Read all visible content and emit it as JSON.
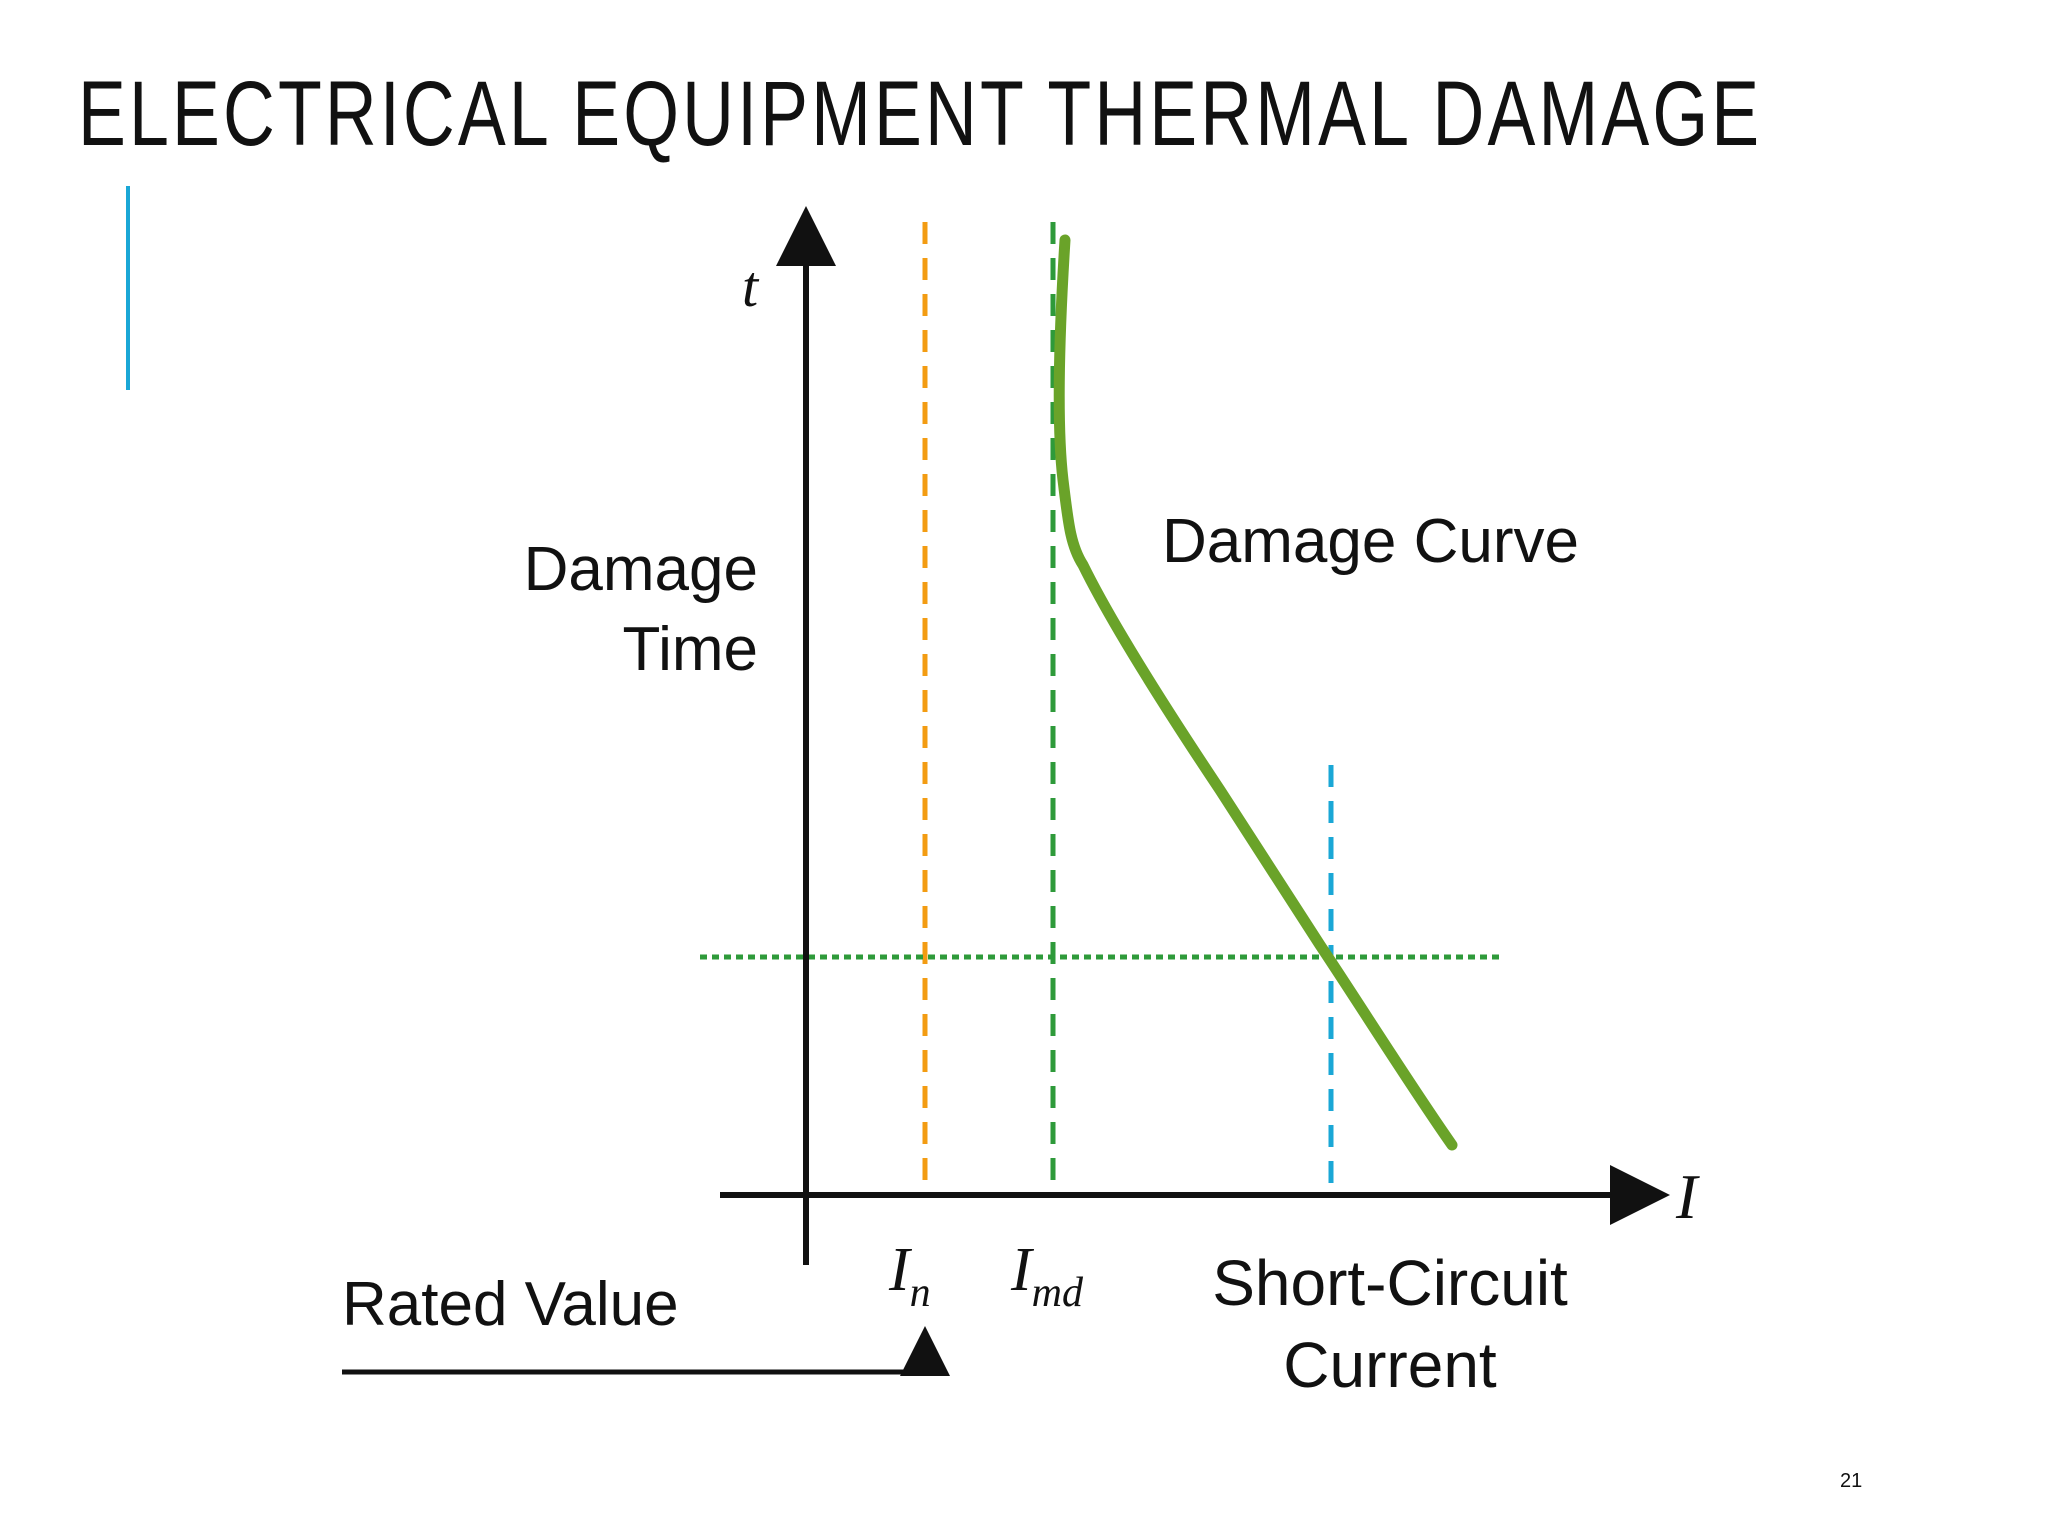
{
  "slide": {
    "title": "ELECTRICAL EQUIPMENT THERMAL DAMAGE",
    "page_number": "21"
  },
  "colors": {
    "accent": "#1aa7d6",
    "axis": "#111111",
    "rated_line": "#f39c12",
    "imd_line": "#2e9a3a",
    "damage_curve": "#6aa329",
    "short_circuit_line": "#1aa7d6",
    "horizontal_line": "#2e9a3a"
  },
  "diagram": {
    "axis_y_label": "t",
    "axis_x_label": "I",
    "damage_time_label_line1": "Damage",
    "damage_time_label_line2": "Time",
    "damage_curve_label": "Damage Curve",
    "rated_value_label": "Rated Value",
    "in_label_main": "I",
    "in_label_sub": "n",
    "imd_label_main": "I",
    "imd_label_sub": "md",
    "short_circuit_label_line1": "Short-Circuit",
    "short_circuit_label_line2": "Current"
  }
}
